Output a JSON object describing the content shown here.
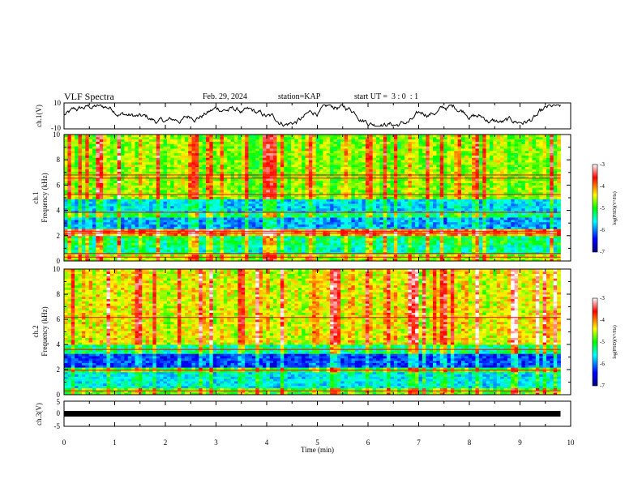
{
  "header": {
    "title": "VLF Spectra",
    "date": "Feb. 29, 2024",
    "station": "station=KAP",
    "start": "start UT =  3 : 0  : 1"
  },
  "chart_data": [
    {
      "type": "line",
      "name": "ch1-waveform",
      "ylabel": "ch.1(V)",
      "ylim": [
        -10,
        10
      ],
      "yticks": [
        "10",
        "-10"
      ],
      "xlim": [
        0,
        10
      ],
      "data_x_extent": [
        0,
        9.8
      ],
      "note_values": "noisy trace oscillating roughly between -7 and 8 V"
    },
    {
      "type": "heatmap",
      "name": "ch1-spectrogram",
      "ylabel_line1": "ch.1",
      "ylabel_line2": "Frequency (kHz)",
      "ylim": [
        0,
        10
      ],
      "yticks": [
        "0",
        "2",
        "4",
        "6",
        "8",
        "10"
      ],
      "xlim": [
        0,
        10
      ],
      "data_x_extent": [
        0,
        9.8
      ],
      "colorbar": {
        "label": "log(PSD)(V²/Hz)",
        "range": [
          -7,
          -3
        ],
        "ticks": [
          "-3",
          "-4",
          "-5",
          "-6",
          "-7"
        ]
      },
      "bands": [
        {
          "f": [
            0.0,
            0.6
          ],
          "level": -4.6
        },
        {
          "f": [
            0.6,
            1.2
          ],
          "level": -5.4
        },
        {
          "f": [
            1.2,
            2.0
          ],
          "level": -5.2
        },
        {
          "f": [
            2.0,
            2.6
          ],
          "level": -4.1
        },
        {
          "f": [
            2.6,
            3.4
          ],
          "level": -5.9
        },
        {
          "f": [
            3.4,
            3.9
          ],
          "level": -5.2
        },
        {
          "f": [
            3.9,
            5.0
          ],
          "level": -5.7
        },
        {
          "f": [
            5.0,
            10.0
          ],
          "level": -4.7
        }
      ],
      "lines_khz": [
        0.3,
        0.6,
        2.2,
        2.35,
        3.85,
        5.25,
        6.55,
        6.8
      ]
    },
    {
      "type": "heatmap",
      "name": "ch2-spectrogram",
      "ylabel_line1": "ch.2",
      "ylabel_line2": "Frequency (kHz)",
      "ylim": [
        0,
        10
      ],
      "yticks": [
        "0",
        "2",
        "4",
        "6",
        "8",
        "10"
      ],
      "xlim": [
        0,
        10
      ],
      "data_x_extent": [
        0,
        9.8
      ],
      "colorbar": {
        "label": "log(PSD)(V²/Hz)",
        "range": [
          -7,
          -3
        ],
        "ticks": [
          "-3",
          "-4",
          "-5",
          "-6",
          "-7"
        ]
      },
      "bands": [
        {
          "f": [
            0.0,
            0.5
          ],
          "level": -4.8
        },
        {
          "f": [
            0.5,
            1.8
          ],
          "level": -5.6
        },
        {
          "f": [
            1.8,
            2.2
          ],
          "level": -4.9
        },
        {
          "f": [
            2.2,
            3.3
          ],
          "level": -6.2
        },
        {
          "f": [
            3.3,
            4.0
          ],
          "level": -5.3
        },
        {
          "f": [
            4.0,
            10.0
          ],
          "level": -4.4
        }
      ],
      "lines_khz": [
        0.3,
        1.95,
        3.6,
        6.15
      ]
    },
    {
      "type": "line",
      "name": "ch3-waveform",
      "ylabel": "ch.3(V)",
      "ylim": [
        -5,
        5
      ],
      "yticks": [
        "5",
        "0",
        "-5"
      ],
      "xlim": [
        0,
        10
      ],
      "data_x_extent": [
        0,
        9.8
      ],
      "level_v": 0,
      "spread_v": 0.45
    }
  ],
  "xaxis": {
    "label": "Time (min)",
    "ticks": [
      "0",
      "1",
      "2",
      "3",
      "4",
      "5",
      "6",
      "7",
      "8",
      "9",
      "10"
    ]
  },
  "colors": {
    "cmap": [
      "#000080",
      "#0000ff",
      "#00ffff",
      "#00ff00",
      "#ffff00",
      "#ff0000",
      "#ffffff"
    ],
    "line": "#000000"
  }
}
